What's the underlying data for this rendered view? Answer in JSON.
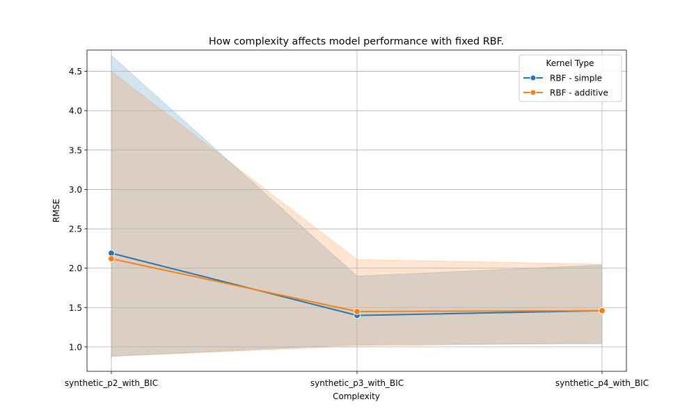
{
  "chart_data": {
    "type": "line",
    "title": "How complexity affects model performance with fixed RBF.",
    "xlabel": "Complexity",
    "ylabel": "RMSE",
    "categories": [
      "synthetic_p2_with_BIC",
      "synthetic_p3_with_BIC",
      "synthetic_p4_with_BIC"
    ],
    "ylim": [
      0.69,
      4.77
    ],
    "yticks": [
      1.0,
      1.5,
      2.0,
      2.5,
      3.0,
      3.5,
      4.0,
      4.5
    ],
    "ytick_labels": [
      "1.0",
      "1.5",
      "2.0",
      "2.5",
      "3.0",
      "3.5",
      "4.0",
      "4.5"
    ],
    "grid": true,
    "legend": {
      "title": "Kernel Type",
      "placement": "top-right"
    },
    "series": [
      {
        "name": "RBF - simple",
        "color": "#1f77b4",
        "values": [
          2.19,
          1.4,
          1.46
        ],
        "ci_low": [
          0.88,
          1.03,
          1.04
        ],
        "ci_high": [
          4.7,
          1.9,
          2.04
        ]
      },
      {
        "name": "RBF - additive",
        "color": "#ff7f0e",
        "values": [
          2.12,
          1.45,
          1.46
        ],
        "ci_low": [
          0.88,
          1.01,
          1.05
        ],
        "ci_high": [
          4.5,
          2.11,
          2.05
        ]
      }
    ]
  }
}
